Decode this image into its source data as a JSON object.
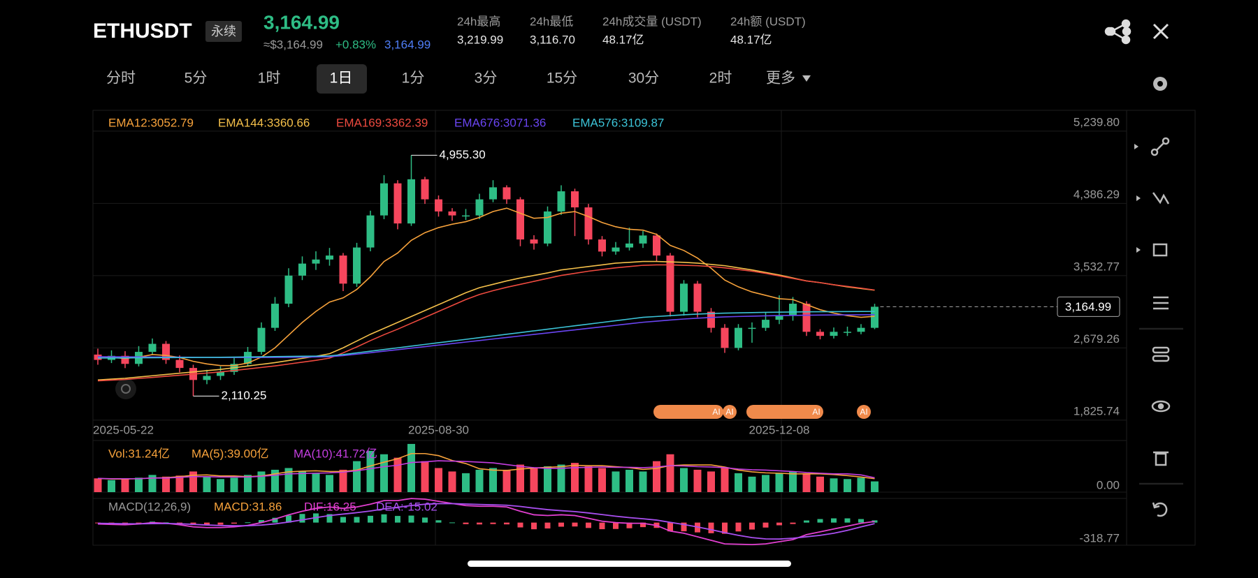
{
  "header": {
    "symbol": "ETHUSDT",
    "tag": "永续",
    "price": "3,164.99",
    "usd": "≈$3,164.99",
    "change": "+0.83%",
    "mark": "3,164.99"
  },
  "stats": [
    {
      "label": "24h最高",
      "value": "3,219.99"
    },
    {
      "label": "24h最低",
      "value": "3,116.70"
    },
    {
      "label": "24h成交量 (USDT)",
      "value": "48.17亿"
    },
    {
      "label": "24h额 (USDT)",
      "value": "48.17亿"
    }
  ],
  "tabs": [
    "分时",
    "5分",
    "1时",
    "1日",
    "1分",
    "3分",
    "15分",
    "30分",
    "2时",
    "更多"
  ],
  "active_tab": 3,
  "badges": [
    "AI",
    "AI",
    "AI",
    "AI"
  ],
  "chart_data": {
    "type": "candlestick",
    "categories": [
      "2025-05-22",
      null,
      null,
      null,
      null,
      null,
      null,
      null,
      null,
      null,
      null,
      null,
      null,
      null,
      null,
      null,
      null,
      null,
      null,
      null,
      null,
      null,
      null,
      null,
      null,
      "2025-08-30",
      null,
      null,
      null,
      null,
      null,
      null,
      null,
      null,
      null,
      null,
      null,
      null,
      null,
      null,
      null,
      null,
      null,
      null,
      null,
      null,
      null,
      null,
      null,
      null,
      "2025-12-08",
      null,
      null,
      null,
      null,
      null,
      null,
      null
    ],
    "open": [
      2600,
      2537,
      2585,
      2490,
      2632,
      2727,
      2537,
      2442,
      2300,
      2348,
      2395,
      2490,
      2632,
      2916,
      3201,
      3533,
      3675,
      3723,
      3770,
      3438,
      3865,
      4244,
      4623,
      4149,
      4671,
      4434,
      4291,
      4244,
      4244,
      4434,
      4576,
      4434,
      3960,
      3912,
      4291,
      4529,
      4339,
      3960,
      3817,
      3865,
      3912,
      4007,
      3770,
      3106,
      3438,
      3106,
      2916,
      2679,
      2916,
      2916,
      3011,
      3059,
      3201,
      2869,
      2821,
      2869,
      2869,
      2916
    ],
    "high": [
      2670,
      2650,
      2640,
      2700,
      2790,
      2760,
      2590,
      2480,
      2420,
      2460,
      2560,
      2690,
      2980,
      3280,
      3620,
      3760,
      3820,
      3860,
      3800,
      3920,
      4300,
      4720,
      4660,
      4955.3,
      4700,
      4480,
      4330,
      4320,
      4500,
      4660,
      4600,
      4460,
      4010,
      4350,
      4600,
      4560,
      4380,
      4000,
      3930,
      4100,
      4060,
      4030,
      3800,
      3480,
      3470,
      3150,
      2960,
      2960,
      2980,
      3100,
      3300,
      3280,
      3230,
      2900,
      2920,
      2930,
      2960,
      3200
    ],
    "low": [
      2480,
      2500,
      2440,
      2460,
      2600,
      2490,
      2390,
      2110.25,
      2250,
      2300,
      2360,
      2460,
      2600,
      2880,
      3160,
      3480,
      3600,
      3650,
      3350,
      3400,
      3820,
      4200,
      4080,
      4120,
      4380,
      4230,
      4180,
      4190,
      4200,
      4400,
      4380,
      3880,
      3840,
      3880,
      4250,
      4000,
      3900,
      3760,
      3780,
      3830,
      3860,
      3700,
      3050,
      3060,
      3040,
      2860,
      2620,
      2650,
      2740,
      2880,
      2960,
      3000,
      2820,
      2780,
      2790,
      2820,
      2840,
      2900
    ],
    "close": [
      2537,
      2585,
      2490,
      2632,
      2727,
      2537,
      2442,
      2300,
      2348,
      2395,
      2490,
      2632,
      2916,
      3201,
      3533,
      3675,
      3723,
      3770,
      3438,
      3865,
      4244,
      4623,
      4149,
      4671,
      4434,
      4291,
      4244,
      4244,
      4434,
      4576,
      4434,
      3960,
      3912,
      4291,
      4529,
      4339,
      3960,
      3817,
      3865,
      3912,
      4007,
      3770,
      3106,
      3438,
      3106,
      2916,
      2679,
      2916,
      2916,
      3011,
      3059,
      3201,
      2869,
      2821,
      2869,
      2869,
      2916,
      3164.99
    ],
    "up_color": "#2ebd85",
    "down_color": "#f6465d",
    "ylim": [
      1816,
      5486
    ],
    "yticks": [
      {
        "value": 5239.8,
        "label": "5,239.80"
      },
      {
        "value": 4386.29,
        "label": "4,386.29"
      },
      {
        "value": 3532.77,
        "label": "3,532.77"
      },
      {
        "value": 2679.26,
        "label": "2,679.26"
      },
      {
        "value": 1825.74,
        "label": "1,825.74"
      }
    ],
    "grid": true,
    "annotations": [
      {
        "value": 4955.3,
        "label": "4,955.30"
      },
      {
        "value": 2110.25,
        "label": "2,110.25"
      }
    ],
    "last_price": {
      "value": 3164.99,
      "label": "3,164.99"
    },
    "series": [
      {
        "name": "EMA12:3052.79",
        "color": "#f7a23b",
        "values": [
          2560,
          2565,
          2555,
          2570,
          2600,
          2590,
          2565,
          2520,
          2490,
          2470,
          2470,
          2500,
          2570,
          2680,
          2830,
          2980,
          3110,
          3220,
          3270,
          3370,
          3520,
          3700,
          3800,
          3950,
          4040,
          4100,
          4140,
          4170,
          4220,
          4290,
          4330,
          4270,
          4210,
          4220,
          4270,
          4290,
          4230,
          4160,
          4110,
          4080,
          4070,
          4020,
          3890,
          3830,
          3740,
          3620,
          3480,
          3400,
          3340,
          3300,
          3260,
          3250,
          3190,
          3130,
          3090,
          3060,
          3040,
          3052.79
        ]
      },
      {
        "name": "EMA144:3360.66",
        "color": "#f5c04a",
        "values": [
          2300,
          2310,
          2320,
          2335,
          2350,
          2365,
          2380,
          2395,
          2410,
          2425,
          2445,
          2465,
          2485,
          2505,
          2530,
          2555,
          2580,
          2610,
          2680,
          2760,
          2840,
          2910,
          2980,
          3050,
          3120,
          3190,
          3260,
          3330,
          3390,
          3430,
          3470,
          3505,
          3535,
          3565,
          3600,
          3620,
          3640,
          3660,
          3680,
          3690,
          3700,
          3700,
          3695,
          3690,
          3680,
          3665,
          3650,
          3625,
          3600,
          3570,
          3540,
          3505,
          3470,
          3450,
          3425,
          3400,
          3380,
          3360.66
        ]
      },
      {
        "name": "EMA169:3362.39",
        "color": "#ee4a3f",
        "values": [
          2290,
          2298,
          2306,
          2318,
          2330,
          2343,
          2356,
          2369,
          2382,
          2395,
          2412,
          2430,
          2448,
          2466,
          2488,
          2510,
          2532,
          2558,
          2620,
          2690,
          2765,
          2835,
          2900,
          2970,
          3040,
          3110,
          3180,
          3250,
          3310,
          3355,
          3395,
          3430,
          3465,
          3500,
          3535,
          3560,
          3585,
          3605,
          3625,
          3640,
          3655,
          3660,
          3660,
          3655,
          3650,
          3640,
          3625,
          3605,
          3585,
          3560,
          3530,
          3500,
          3470,
          3450,
          3425,
          3405,
          3385,
          3362.39
        ]
      },
      {
        "name": "EMA676:3071.36",
        "color": "#6a45f2",
        "values": [
          2575,
          2574,
          2573,
          2572,
          2571,
          2570,
          2569,
          2568,
          2567,
          2566,
          2566,
          2566,
          2566,
          2567,
          2568,
          2570,
          2572,
          2575,
          2588,
          2605,
          2622,
          2640,
          2658,
          2676,
          2694,
          2712,
          2730,
          2748,
          2766,
          2784,
          2802,
          2820,
          2838,
          2856,
          2874,
          2892,
          2910,
          2928,
          2946,
          2964,
          2982,
          2995,
          3008,
          3020,
          3030,
          3038,
          3045,
          3050,
          3054,
          3058,
          3061,
          3063,
          3065,
          3067,
          3068,
          3069,
          3070,
          3071.36
        ]
      },
      {
        "name": "EMA576:3109.87",
        "color": "#3cc4d8",
        "values": [
          2560,
          2560,
          2561,
          2562,
          2563,
          2564,
          2565,
          2566,
          2567,
          2568,
          2570,
          2572,
          2574,
          2576,
          2578,
          2580,
          2582,
          2585,
          2600,
          2620,
          2640,
          2660,
          2680,
          2700,
          2720,
          2740,
          2760,
          2780,
          2800,
          2820,
          2840,
          2860,
          2880,
          2900,
          2920,
          2940,
          2960,
          2980,
          3000,
          3020,
          3040,
          3050,
          3060,
          3070,
          3078,
          3085,
          3090,
          3093,
          3096,
          3099,
          3101,
          3103,
          3105,
          3106,
          3107,
          3108,
          3109,
          3109.87
        ]
      }
    ],
    "volume": {
      "name": "Vol:31.24亿",
      "color": "#f7a23b",
      "ylim": [
        0,
        150
      ],
      "yticks": [
        {
          "value": 0,
          "label": "0.00"
        }
      ],
      "values": [
        40,
        35,
        38,
        42,
        50,
        45,
        48,
        60,
        45,
        38,
        42,
        50,
        60,
        65,
        70,
        60,
        55,
        50,
        65,
        90,
        120,
        110,
        100,
        140,
        90,
        70,
        60,
        55,
        65,
        70,
        65,
        80,
        70,
        75,
        80,
        85,
        75,
        70,
        60,
        65,
        60,
        90,
        110,
        70,
        65,
        60,
        70,
        55,
        45,
        50,
        55,
        60,
        55,
        45,
        40,
        38,
        42,
        31.24
      ],
      "series": [
        {
          "name": "MA(5):39.00亿",
          "color": "#f7a23b",
          "values": [
            40,
            38,
            38,
            39,
            41,
            42,
            45,
            49,
            50,
            47,
            47,
            45,
            47,
            53,
            59,
            61,
            62,
            60,
            60,
            64,
            76,
            87,
            97,
            112,
            112,
            106,
            92,
            83,
            68,
            64,
            63,
            67,
            70,
            72,
            74,
            78,
            77,
            77,
            74,
            71,
            66,
            69,
            77,
            79,
            79,
            79,
            73,
            64,
            59,
            56,
            55,
            53,
            53,
            53,
            51,
            48,
            44,
            39.0
          ]
        },
        {
          "name": "MA(10):41.72亿",
          "color": "#c43ee0",
          "values": [
            40,
            39,
            39,
            39,
            41,
            41,
            43,
            45,
            45,
            44,
            44,
            44,
            46,
            49,
            53,
            54,
            55,
            56,
            58,
            62,
            68,
            74,
            78,
            86,
            88,
            91,
            90,
            89,
            87,
            85,
            80,
            75,
            71,
            69,
            69,
            71,
            72,
            73,
            72,
            72,
            71,
            73,
            77,
            76,
            74,
            73,
            71,
            67,
            65,
            64,
            62,
            60,
            57,
            55,
            53,
            53,
            50,
            41.72
          ]
        }
      ]
    },
    "macd": {
      "name": "MACD(12,26,9)",
      "ylim": [
        -318.77,
        341
      ],
      "yticks": [
        {
          "value": -318.77,
          "label": "-318.77"
        }
      ],
      "histogram": {
        "name": "MACD:31.86",
        "color": "#f7a23b",
        "values": [
          -10,
          -12,
          -14,
          -3,
          14,
          3,
          -14,
          -35,
          -36,
          -29,
          -15,
          4,
          35,
          68,
          102,
          122,
          130,
          120,
          80,
          80,
          96,
          117,
          94,
          99,
          71,
          33,
          2,
          -22,
          -26,
          -21,
          -25,
          -68,
          -94,
          -83,
          -58,
          -55,
          -76,
          -93,
          -90,
          -80,
          -64,
          -75,
          -124,
          -123,
          -138,
          -150,
          -158,
          -125,
          -98,
          -70,
          -38,
          -20,
          30,
          50,
          60,
          60,
          50,
          31.86
        ]
      },
      "series": [
        {
          "name": "DIF:16.25",
          "color": "#e23fd0",
          "values": [
            -20,
            -25,
            -30,
            -20,
            0,
            -10,
            -30,
            -60,
            -70,
            -70,
            -60,
            -40,
            0,
            50,
            110,
            160,
            200,
            220,
            200,
            220,
            260,
            310,
            310,
            340,
            330,
            300,
            270,
            240,
            230,
            230,
            220,
            160,
            110,
            100,
            110,
            100,
            60,
            20,
            0,
            -10,
            -10,
            -40,
            -120,
            -150,
            -200,
            -250,
            -300,
            -305,
            -310,
            -300,
            -270,
            -240,
            -170,
            -130,
            -90,
            -50,
            -10,
            16.25
          ]
        },
        {
          "name": "DEA:-15.02",
          "color": "#a94ff0",
          "values": [
            -10,
            -13,
            -16,
            -17,
            -14,
            -13,
            -16,
            -25,
            -34,
            -41,
            -45,
            -44,
            -35,
            -18,
            8,
            38,
            70,
            100,
            120,
            140,
            164,
            193,
            216,
            241,
            259,
            267,
            268,
            262,
            256,
            251,
            245,
            228,
            204,
            183,
            168,
            155,
            136,
            113,
            90,
            70,
            54,
            35,
            4,
            -27,
            -62,
            -100,
            -142,
            -180,
            -212,
            -230,
            -232,
            -220,
            -200,
            -180,
            -150,
            -110,
            -60,
            -15.02
          ]
        }
      ]
    }
  }
}
